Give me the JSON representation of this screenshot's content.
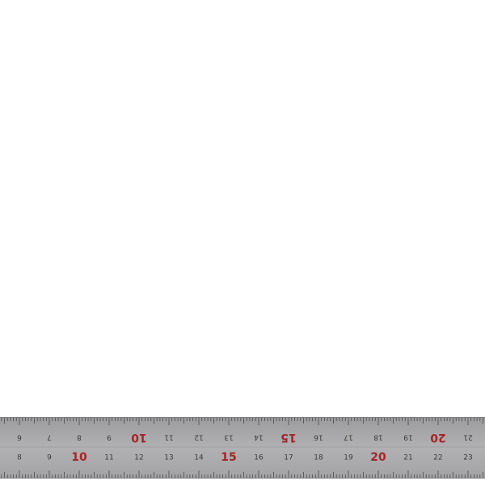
{
  "ruler": {
    "top_scale": {
      "labels": [
        6,
        7,
        8,
        9,
        10,
        11,
        12,
        13,
        14,
        15,
        16,
        17,
        18,
        19,
        20,
        21
      ]
    },
    "bottom_scale": {
      "labels": [
        8,
        9,
        10,
        11,
        12,
        13,
        14,
        15,
        16,
        17,
        18,
        19,
        20,
        21,
        22,
        23
      ]
    }
  }
}
